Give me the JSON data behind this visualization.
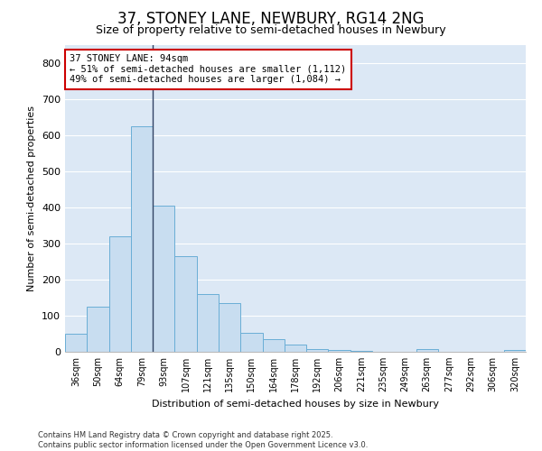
{
  "title": "37, STONEY LANE, NEWBURY, RG14 2NG",
  "subtitle": "Size of property relative to semi-detached houses in Newbury",
  "xlabel": "Distribution of semi-detached houses by size in Newbury",
  "ylabel": "Number of semi-detached properties",
  "categories": [
    "36sqm",
    "50sqm",
    "64sqm",
    "79sqm",
    "93sqm",
    "107sqm",
    "121sqm",
    "135sqm",
    "150sqm",
    "164sqm",
    "178sqm",
    "192sqm",
    "206sqm",
    "221sqm",
    "235sqm",
    "249sqm",
    "263sqm",
    "277sqm",
    "292sqm",
    "306sqm",
    "320sqm"
  ],
  "values": [
    50,
    125,
    320,
    625,
    405,
    265,
    160,
    135,
    53,
    35,
    20,
    8,
    5,
    3,
    1,
    1,
    8,
    0,
    0,
    0,
    5
  ],
  "bar_color": "#c8ddf0",
  "bar_edge_color": "#6aaed6",
  "vline_x_index": 3,
  "vline_color": "#334466",
  "annotation_text": "37 STONEY LANE: 94sqm\n← 51% of semi-detached houses are smaller (1,112)\n49% of semi-detached houses are larger (1,084) →",
  "annotation_box_facecolor": "#ffffff",
  "annotation_box_edgecolor": "#cc0000",
  "ylim": [
    0,
    850
  ],
  "yticks": [
    0,
    100,
    200,
    300,
    400,
    500,
    600,
    700,
    800
  ],
  "fig_facecolor": "#ffffff",
  "ax_facecolor": "#dce8f5",
  "grid_color": "#ffffff",
  "footer_line1": "Contains HM Land Registry data © Crown copyright and database right 2025.",
  "footer_line2": "Contains public sector information licensed under the Open Government Licence v3.0.",
  "title_fontsize": 12,
  "subtitle_fontsize": 9,
  "tick_fontsize": 7,
  "ylabel_fontsize": 8,
  "xlabel_fontsize": 8,
  "annotation_fontsize": 7.5,
  "footer_fontsize": 6
}
